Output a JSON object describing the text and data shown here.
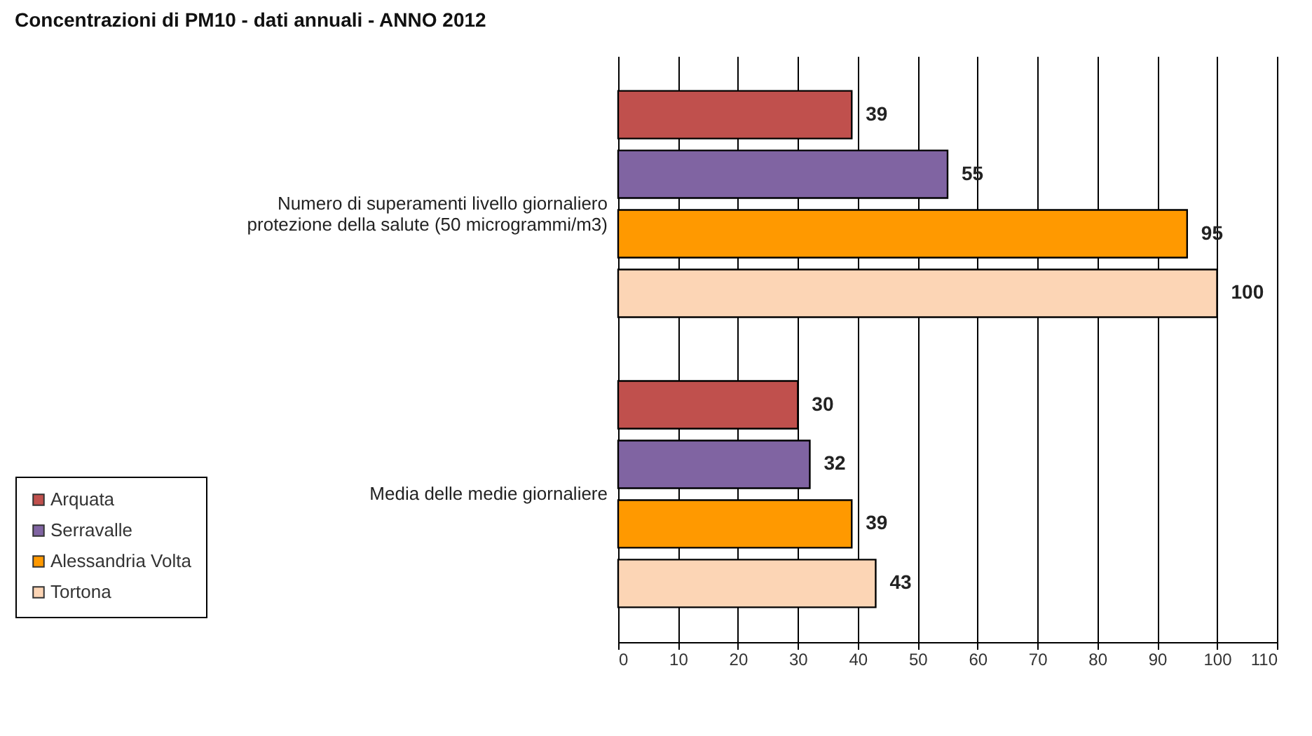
{
  "chart_data": {
    "type": "bar",
    "orientation": "horizontal",
    "title": "Concentrazioni di PM10 - dati annuali - ANNO 2012",
    "categories": [
      "Numero di superamenti livello giornaliero protezione della salute (50 microgrammi/m3)",
      "Media delle medie giornaliere"
    ],
    "series": [
      {
        "name": "Arquata",
        "color": "#c0504d",
        "values": [
          39,
          30
        ]
      },
      {
        "name": "Serravalle",
        "color": "#8064a2",
        "values": [
          55,
          32
        ]
      },
      {
        "name": "Alessandria Volta",
        "color": "#ff9900",
        "values": [
          95,
          39
        ]
      },
      {
        "name": "Tortona",
        "color": "#fcd5b5",
        "values": [
          100,
          43
        ]
      }
    ],
    "xlim": [
      0,
      110
    ],
    "xticks": [
      0,
      10,
      20,
      30,
      40,
      50,
      60,
      70,
      80,
      90,
      100,
      110
    ],
    "grid": "x",
    "legend": "bottom left",
    "data_labels": true
  }
}
